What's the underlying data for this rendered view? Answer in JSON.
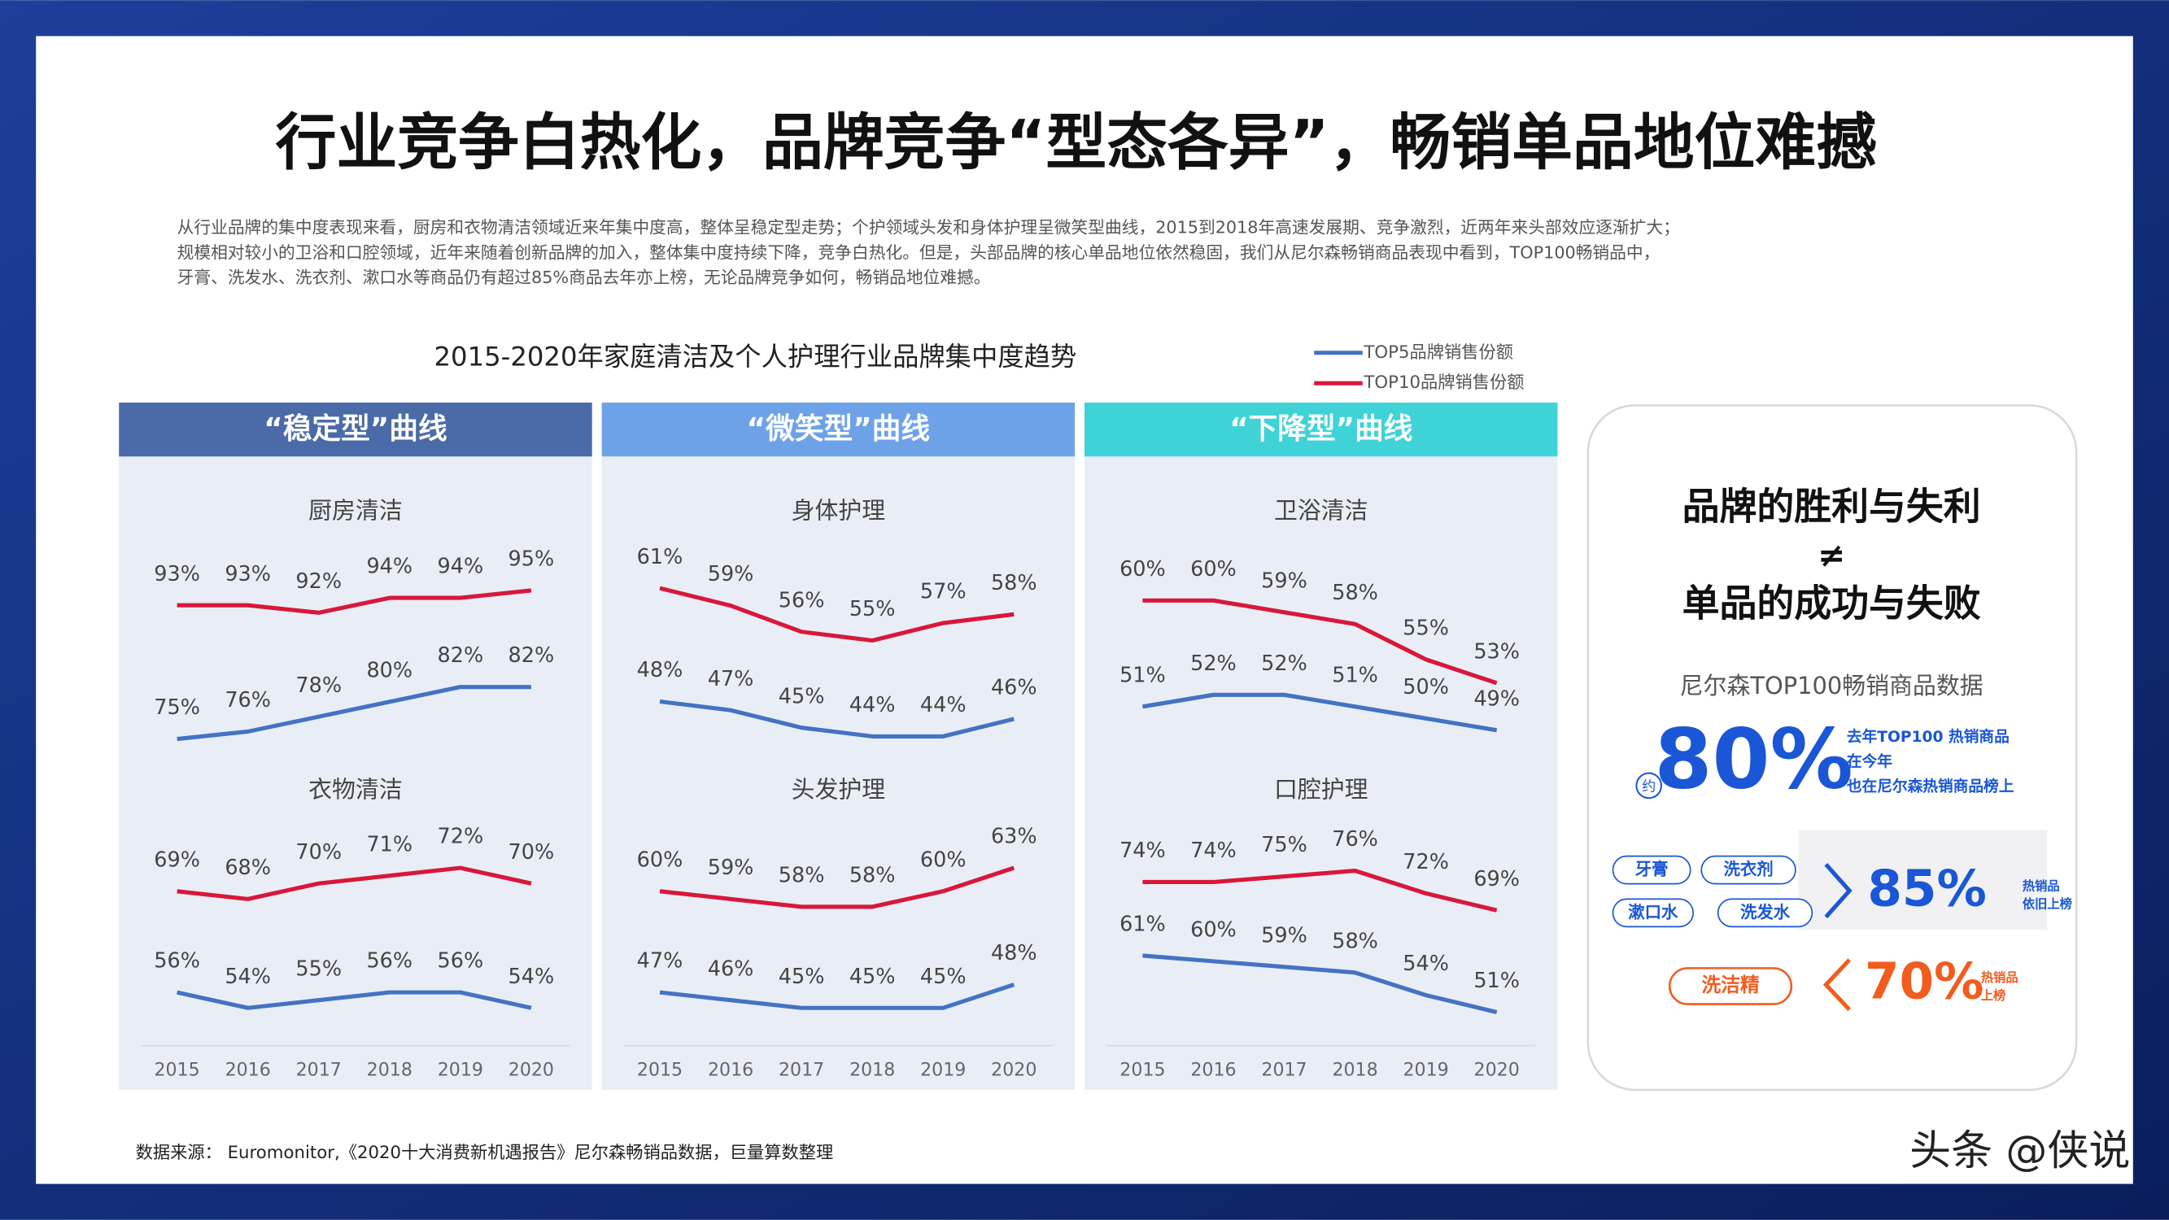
{
  "title": "行业竞争白热化，品牌竞争“型态各异”，畅销单品地位难撼",
  "description": [
    "从行业品牌的集中度表现来看，厨房和衣物清洁领域近来年集中度高，整体呈稳定型走势；个护领域头发和身体护理呈微笑型曲线，2015到2018年高速发展期、竞争激烈，近两年来头部效应逐渐扩大；",
    "规模相对较小的卫浴和口腔领域，近年来随着创新品牌的加入，整体集中度持续下降，竞争白热化。但是，头部品牌的核心单品地位依然稳固，我们从尼尔森畅销商品表现中看到，TOP100畅销品中，",
    "牙膏、洗发水、洗衣剂、漱口水等商品仍有超过85%商品去年亦上榜，无论品牌竞争如何，畅销品地位难撼。"
  ],
  "chart_data": {
    "type": "line",
    "title": "2015-2020年家庭清洁及个人护理行业品牌集中度趋势",
    "series": [
      {
        "name": "TOP5品牌销售份额",
        "color": "#4472c4"
      },
      {
        "name": "TOP10品牌销售份额",
        "color": "#d9173a"
      }
    ],
    "categories": [
      "2015",
      "2016",
      "2017",
      "2018",
      "2019",
      "2020"
    ],
    "groups": [
      {
        "title": "“稳定型”曲线",
        "color": "#4b6aa8",
        "charts": [
          {
            "title": "厨房清洁",
            "ylim": [
              73,
              100
            ],
            "series": [
              {
                "values": [
                  75,
                  76,
                  78,
                  80,
                  82,
                  82
                ],
                "value_labels": [
                  "75%",
                  "76%",
                  "78%",
                  "80%",
                  "82%",
                  "82%"
                ]
              },
              {
                "values": [
                  93,
                  93,
                  92,
                  94,
                  94,
                  95
                ],
                "value_labels": [
                  "93%",
                  "93%",
                  "92%",
                  "94%",
                  "94%",
                  "95%"
                ]
              }
            ]
          },
          {
            "title": "衣物清洁",
            "ylim": [
              52,
              76
            ],
            "series": [
              {
                "values": [
                  56,
                  54,
                  55,
                  56,
                  56,
                  54
                ],
                "value_labels": [
                  "56%",
                  "54%",
                  "55%",
                  "56%",
                  "56%",
                  "54%"
                ]
              },
              {
                "values": [
                  69,
                  68,
                  70,
                  71,
                  72,
                  70
                ],
                "value_labels": [
                  "69%",
                  "68%",
                  "70%",
                  "71%",
                  "72%",
                  "70%"
                ]
              }
            ]
          }
        ]
      },
      {
        "title": "“微笑型”曲线",
        "color": "#6ea2e8",
        "charts": [
          {
            "title": "身体护理",
            "ylim": [
              42,
              65
            ],
            "series": [
              {
                "values": [
                  48,
                  47,
                  45,
                  44,
                  44,
                  46
                ],
                "value_labels": [
                  "48%",
                  "47%",
                  "45%",
                  "44%",
                  "44%",
                  "46%"
                ]
              },
              {
                "values": [
                  61,
                  59,
                  56,
                  55,
                  57,
                  58
                ],
                "value_labels": [
                  "61%",
                  "59%",
                  "56%",
                  "55%",
                  "57%",
                  "58%"
                ]
              }
            ]
          },
          {
            "title": "头发护理",
            "ylim": [
              43,
              67
            ],
            "series": [
              {
                "values": [
                  47,
                  46,
                  45,
                  45,
                  45,
                  48
                ],
                "value_labels": [
                  "47%",
                  "46%",
                  "45%",
                  "45%",
                  "45%",
                  "48%"
                ]
              },
              {
                "values": [
                  60,
                  59,
                  58,
                  58,
                  60,
                  63
                ],
                "value_labels": [
                  "60%",
                  "59%",
                  "58%",
                  "58%",
                  "60%",
                  "63%"
                ]
              }
            ]
          }
        ]
      },
      {
        "title": "“下降型”曲线",
        "color": "#3fd3d8",
        "charts": [
          {
            "title": "卫浴清洁",
            "ylim": [
              47,
              64
            ],
            "series": [
              {
                "values": [
                  51,
                  52,
                  52,
                  51,
                  50,
                  49
                ],
                "value_labels": [
                  "51%",
                  "52%",
                  "52%",
                  "51%",
                  "50%",
                  "49%"
                ]
              },
              {
                "values": [
                  60,
                  60,
                  59,
                  58,
                  55,
                  53
                ],
                "value_labels": [
                  "60%",
                  "60%",
                  "59%",
                  "58%",
                  "55%",
                  "53%"
                ]
              }
            ]
          },
          {
            "title": "口腔护理",
            "ylim": [
              49,
              82
            ],
            "series": [
              {
                "values": [
                  61,
                  60,
                  59,
                  58,
                  54,
                  51
                ],
                "value_labels": [
                  "61%",
                  "60%",
                  "59%",
                  "58%",
                  "54%",
                  "51%"
                ]
              },
              {
                "values": [
                  74,
                  74,
                  75,
                  76,
                  72,
                  69
                ],
                "value_labels": [
                  "74%",
                  "74%",
                  "75%",
                  "76%",
                  "72%",
                  "69%"
                ]
              }
            ]
          }
        ]
      }
    ]
  },
  "card": {
    "headline": [
      "品牌的胜利与失利",
      "≠",
      "单品的成功与失败"
    ],
    "subtitle": "尼尔森TOP100畅销商品数据",
    "big_stat": "80%",
    "about": "约",
    "big_note": [
      "去年TOP100 热销商品",
      "在今年",
      "也在尼尔森热销商品榜上"
    ],
    "group1_items": [
      "牙膏",
      "洗衣剂",
      "漱口水",
      "洗发水"
    ],
    "group1_stat": "85%",
    "group1_note": [
      "热销品",
      "依旧上榜"
    ],
    "group2_items": [
      "洗洁精"
    ],
    "group2_stat": "70%",
    "group2_note": [
      "热销品",
      "上榜"
    ]
  },
  "source": "数据来源： Euromonitor,《2020十大消费新机遇报告》尼尔森畅销品数据，巨量算数整理",
  "watermark": "头条 @侠说"
}
